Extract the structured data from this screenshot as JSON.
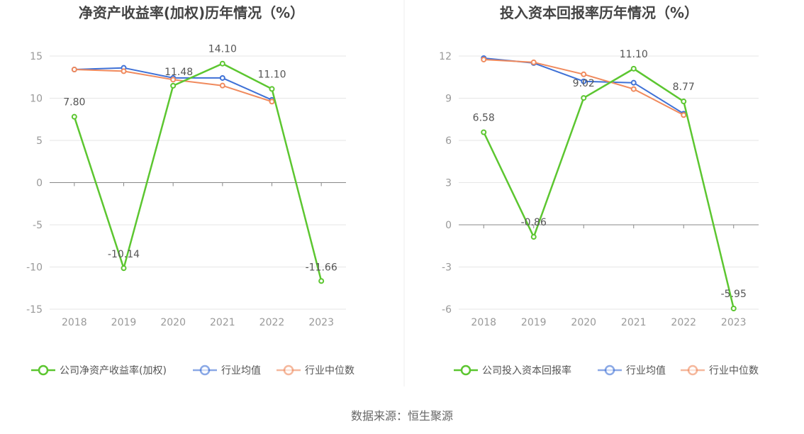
{
  "source": "数据来源：恒生聚源",
  "colors": {
    "company": "#5cc630",
    "avg": "#3f71d6",
    "median": "#f08a5d",
    "grid": "#e6e6e6",
    "axis": "#888888"
  },
  "chart_data": [
    {
      "type": "line",
      "title": "净资产收益率(加权)历年情况（%）",
      "categories": [
        "2018",
        "2019",
        "2020",
        "2021",
        "2022",
        "2023"
      ],
      "y_ticks": [
        "15",
        "10",
        "5",
        "0",
        "-5",
        "-10",
        "-15"
      ],
      "ylim": [
        -15,
        15
      ],
      "grid": true,
      "legend_position": "bottom",
      "series": [
        {
          "name": "公司净资产收益率(加权)",
          "values": [
            7.8,
            -10.14,
            11.48,
            14.1,
            11.1,
            -11.66
          ],
          "labels": [
            "7.80",
            "-10.14",
            "11.48",
            "14.10",
            "11.10",
            "-11.66"
          ]
        },
        {
          "name": "行业均值",
          "values": [
            13.4,
            13.6,
            12.4,
            12.4,
            9.8,
            null
          ]
        },
        {
          "name": "行业中位数",
          "values": [
            13.4,
            13.2,
            12.2,
            11.5,
            9.6,
            null
          ]
        }
      ]
    },
    {
      "type": "line",
      "title": "投入资本回报率历年情况（%）",
      "categories": [
        "2018",
        "2019",
        "2020",
        "2021",
        "2022",
        "2023"
      ],
      "y_ticks": [
        "12",
        "9",
        "6",
        "3",
        "0",
        "-3",
        "-6"
      ],
      "ylim": [
        -6,
        12
      ],
      "grid": true,
      "legend_position": "bottom",
      "series": [
        {
          "name": "公司投入资本回报率",
          "values": [
            6.58,
            -0.86,
            9.02,
            11.1,
            8.77,
            -5.95
          ],
          "labels": [
            "6.58",
            "-0.86",
            "9.02",
            "11.10",
            "8.77",
            "-5.95"
          ]
        },
        {
          "name": "行业均值",
          "values": [
            11.85,
            11.5,
            10.2,
            10.1,
            7.9,
            null
          ]
        },
        {
          "name": "行业中位数",
          "values": [
            11.75,
            11.55,
            10.7,
            9.65,
            7.8,
            null
          ]
        }
      ]
    }
  ]
}
